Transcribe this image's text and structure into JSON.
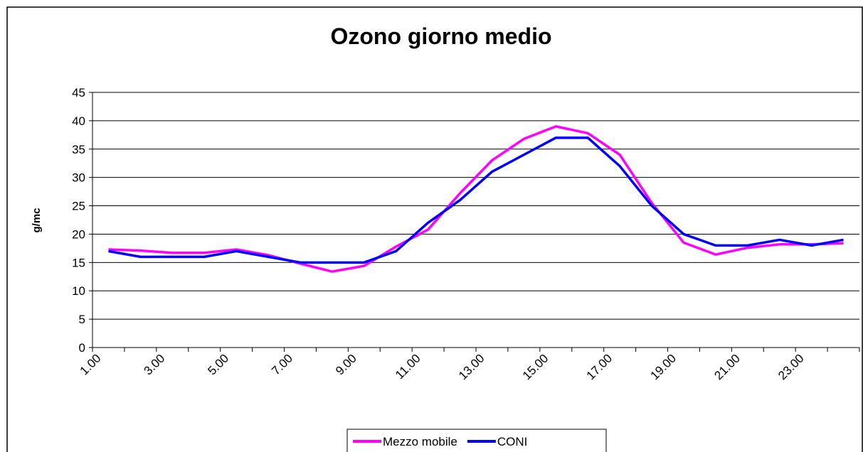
{
  "chart_data": {
    "type": "line",
    "title": "Ozono giorno medio",
    "y_label": "g/mc",
    "categories": [
      "1.00",
      null,
      "3.00",
      null,
      "5.00",
      null,
      "7.00",
      null,
      "9.00",
      null,
      "11.00",
      null,
      "13.00",
      null,
      "15.00",
      null,
      "17.00",
      null,
      "19.00",
      null,
      "21.00",
      null,
      "23.00",
      null
    ],
    "series": [
      {
        "name": "Mezzo mobile",
        "color": "#ff00ff",
        "values": [
          17.3,
          17.1,
          16.7,
          16.7,
          17.3,
          16.3,
          14.8,
          13.4,
          14.4,
          17.8,
          20.8,
          27.2,
          33,
          36.8,
          39,
          37.8,
          34,
          25.5,
          18.5,
          16.4,
          17.6,
          18.2,
          18.2,
          18.4
        ]
      },
      {
        "name": "CONI",
        "color": "#0000ff",
        "values": [
          17,
          16,
          16,
          16,
          17,
          16,
          15,
          15,
          15,
          17,
          22,
          26,
          31,
          34,
          37,
          37,
          32,
          25,
          20,
          18,
          18,
          19,
          18,
          19
        ]
      }
    ],
    "ylim": [
      0,
      45
    ],
    "yticks": [
      0,
      5,
      10,
      15,
      20,
      25,
      30,
      35,
      40,
      45
    ],
    "grid": true,
    "legend": "bottom"
  }
}
